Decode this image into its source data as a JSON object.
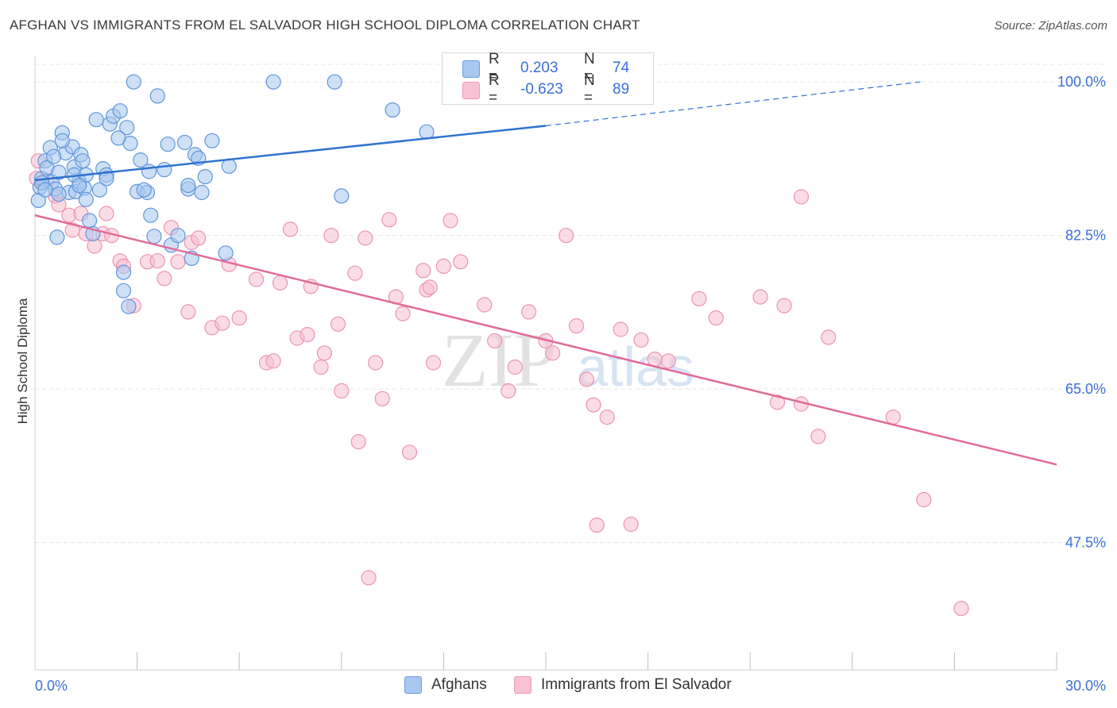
{
  "header": {
    "title": "AFGHAN VS IMMIGRANTS FROM EL SALVADOR HIGH SCHOOL DIPLOMA CORRELATION CHART",
    "source": "Source: ZipAtlas.com"
  },
  "watermark": {
    "zip": "ZIP",
    "atlas": "atlas"
  },
  "legend": {
    "r_label": "R =",
    "n_label": "N =",
    "series": [
      {
        "r": "0.203",
        "n": "74",
        "fill": "#a8c8f0",
        "stroke": "#6a9ee0"
      },
      {
        "r": "-0.623",
        "n": "89",
        "fill": "#f8c2d4",
        "stroke": "#ee98b6"
      }
    ]
  },
  "colors": {
    "blue_point": "#a6c6ee",
    "blue_stroke": "#5f95db",
    "blue_line": "#2f73d0",
    "pink_point": "#f7c0d2",
    "pink_stroke": "#ec93b3",
    "pink_line": "#e26b98",
    "tick_label": "#3b6fd6",
    "grid": "#e5e5e5"
  },
  "chart_data": {
    "type": "scatter",
    "title": "AFGHAN VS IMMIGRANTS FROM EL SALVADOR HIGH SCHOOL DIPLOMA CORRELATION CHART",
    "xlabel": "",
    "ylabel": "High School Diploma",
    "xlim": [
      0,
      30
    ],
    "ylim": [
      33,
      103
    ],
    "x_tick_labels": [
      "0.0%",
      "30.0%"
    ],
    "y_ticks": [
      47.5,
      65.0,
      82.5,
      100.0
    ],
    "y_tick_labels": [
      "47.5%",
      "65.0%",
      "82.5%",
      "100.0%"
    ],
    "grid": true,
    "legend_position": "top-center",
    "series": [
      {
        "name": "Afghans",
        "trend": {
          "x0": 0.0,
          "y0": 88.8,
          "x1": 15.0,
          "y1": 95.0,
          "dash_to_x": 26.0,
          "dash_to_y": 100.0
        },
        "x": [
          0.1,
          0.15,
          0.2,
          0.3,
          0.35,
          0.45,
          0.5,
          0.6,
          0.65,
          0.7,
          0.8,
          0.9,
          1.0,
          1.1,
          1.15,
          1.2,
          1.3,
          1.35,
          1.4,
          1.45,
          1.5,
          1.6,
          1.7,
          1.8,
          1.9,
          2.0,
          2.1,
          2.2,
          2.3,
          2.5,
          2.6,
          2.7,
          2.8,
          2.9,
          3.0,
          3.1,
          3.3,
          3.4,
          3.5,
          3.6,
          3.8,
          3.9,
          4.0,
          4.2,
          4.4,
          4.5,
          4.6,
          4.7,
          4.9,
          5.0,
          5.2,
          5.6,
          7.0,
          8.8,
          9.0,
          10.5,
          11.5,
          2.6,
          2.75,
          0.2,
          0.3,
          1.15,
          2.1,
          5.7,
          1.5,
          0.8,
          3.2,
          4.8,
          0.55,
          1.3,
          3.35,
          4.5,
          2.45,
          0.7
        ],
        "y": [
          86.5,
          88.0,
          89.0,
          91.0,
          90.2,
          92.5,
          88.6,
          87.8,
          82.3,
          89.7,
          94.2,
          91.9,
          87.4,
          92.6,
          90.3,
          87.5,
          88.6,
          91.7,
          91.0,
          87.9,
          86.6,
          84.2,
          82.7,
          95.7,
          87.7,
          90.1,
          89.4,
          95.2,
          96.1,
          96.7,
          76.2,
          94.8,
          93.0,
          100.0,
          87.5,
          91.1,
          87.4,
          84.8,
          82.4,
          98.4,
          90.0,
          92.9,
          81.4,
          82.5,
          93.1,
          87.8,
          79.9,
          91.7,
          87.4,
          89.2,
          93.3,
          80.5,
          100.0,
          100.0,
          87.0,
          96.8,
          94.3,
          78.3,
          74.4,
          88.5,
          87.7,
          89.4,
          89.0,
          90.4,
          89.4,
          93.3,
          87.7,
          91.3,
          91.5,
          88.2,
          89.8,
          88.2,
          93.6,
          87.2
        ]
      },
      {
        "name": "Immigrants from El Salvador",
        "trend": {
          "x0": 0.0,
          "y0": 84.8,
          "x1": 30.0,
          "y1": 56.4
        },
        "x": [
          0.05,
          0.1,
          0.2,
          0.35,
          0.6,
          0.7,
          1.0,
          1.1,
          1.35,
          1.5,
          1.75,
          2.0,
          2.1,
          2.25,
          2.5,
          2.6,
          2.9,
          3.3,
          3.6,
          3.8,
          4.0,
          4.2,
          4.5,
          4.6,
          4.8,
          5.2,
          5.5,
          5.7,
          6.0,
          6.5,
          6.8,
          7.0,
          7.2,
          7.5,
          7.7,
          8.0,
          8.1,
          8.4,
          8.5,
          8.7,
          8.9,
          9.0,
          9.4,
          9.5,
          9.7,
          10.0,
          10.2,
          10.4,
          10.6,
          10.8,
          11.0,
          11.4,
          11.5,
          11.6,
          11.7,
          12.0,
          12.2,
          12.5,
          13.2,
          13.5,
          13.9,
          14.1,
          14.5,
          15.0,
          15.2,
          15.6,
          15.9,
          16.2,
          16.4,
          16.8,
          17.2,
          17.5,
          17.8,
          18.2,
          18.6,
          19.5,
          20.0,
          21.3,
          21.8,
          22.0,
          22.5,
          23.0,
          23.3,
          25.2,
          26.1,
          16.5,
          22.5,
          27.2,
          9.8
        ],
        "y": [
          89.0,
          91.0,
          88.5,
          88.8,
          87.0,
          86.0,
          84.8,
          83.1,
          85.0,
          82.7,
          81.3,
          82.7,
          85.0,
          82.5,
          79.6,
          79.0,
          74.5,
          79.5,
          79.6,
          77.6,
          83.4,
          79.5,
          73.8,
          81.7,
          82.2,
          72.0,
          72.5,
          79.2,
          73.1,
          77.5,
          68.0,
          68.2,
          77.1,
          83.2,
          70.8,
          71.2,
          76.7,
          67.5,
          69.1,
          82.5,
          72.4,
          64.8,
          78.2,
          59.0,
          82.2,
          68.0,
          63.9,
          84.3,
          75.5,
          73.6,
          57.8,
          78.5,
          76.3,
          76.6,
          68.0,
          79.0,
          84.2,
          79.5,
          74.6,
          70.5,
          64.8,
          67.5,
          73.8,
          70.5,
          69.1,
          82.5,
          72.2,
          66.1,
          63.2,
          61.8,
          71.8,
          49.6,
          70.6,
          68.4,
          68.2,
          75.3,
          73.1,
          75.5,
          63.5,
          74.5,
          63.3,
          59.6,
          70.9,
          61.8,
          52.4,
          49.5,
          86.9,
          40.0,
          43.5
        ]
      }
    ]
  },
  "bottom_legend": {
    "items": [
      {
        "label": "Afghans"
      },
      {
        "label": "Immigrants from El Salvador"
      }
    ]
  }
}
